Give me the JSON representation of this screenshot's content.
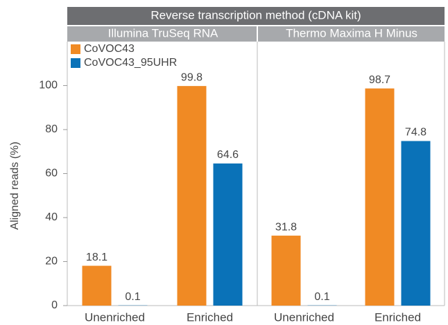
{
  "header": "Reverse transcription method (cDNA kit)",
  "chart_data": [
    {
      "type": "bar",
      "title": "Illumina TruSeq RNA",
      "y_label": "Aligned reads (%)",
      "categories": [
        "Unenriched",
        "Enriched"
      ],
      "series": [
        {
          "name": "CoVOC43",
          "color": "#f08a24",
          "values": [
            18.1,
            99.8
          ]
        },
        {
          "name": "CoVOC43_95UHR",
          "color": "#0a72b8",
          "values": [
            0.1,
            64.6
          ]
        }
      ],
      "ylim": [
        0,
        120
      ],
      "yticks": [
        0,
        20,
        40,
        60,
        80,
        100
      ],
      "legend": "upper left"
    },
    {
      "type": "bar",
      "title": "Thermo Maxima H Minus",
      "categories": [
        "Unenriched",
        "Enriched"
      ],
      "series": [
        {
          "color": "#f08a24",
          "values": [
            31.8,
            98.7
          ]
        },
        {
          "color": "#0a72b8",
          "values": [
            0.1,
            74.8
          ]
        }
      ],
      "ylim": [
        0,
        120
      ]
    }
  ]
}
